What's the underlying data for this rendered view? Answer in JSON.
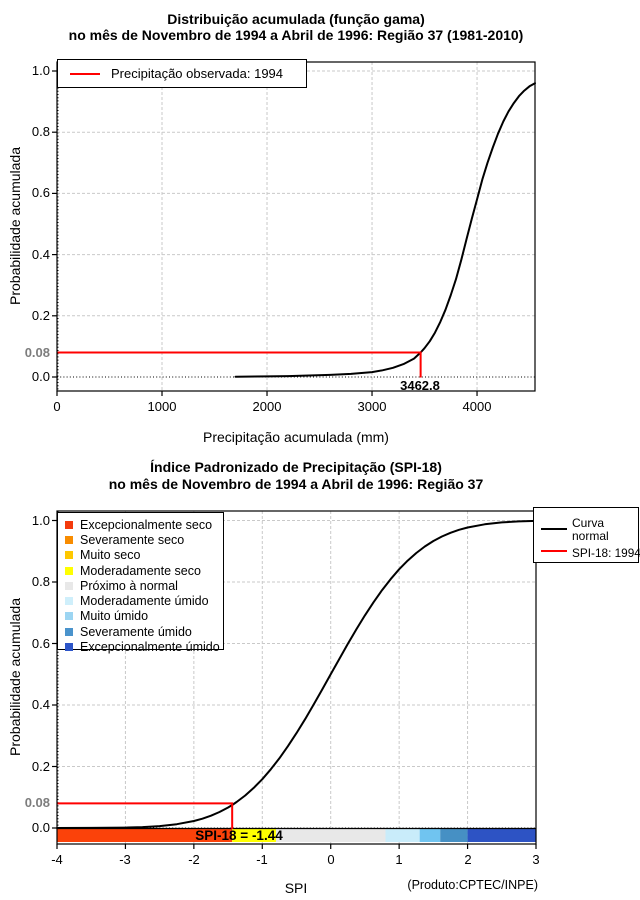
{
  "footer": "(Produto:CPTEC/INPE)",
  "colors": {
    "observed_line": "#ff0000",
    "curve": "#000000",
    "grid": "#c9c9c9",
    "special_tick": "#7d7d7d"
  },
  "charts": [
    {
      "id": "c1",
      "title1": "Distribuição acumulada (função gama)",
      "title2": "no mês de Novembro de 1994 a Abril de 1996: Região 37 (1981-2010)",
      "xlabel": "Precipitação acumulada (mm)",
      "ylabel": "Probabilidade acumulada",
      "legend": {
        "label": "Precipitação observada: 1994",
        "color": "#ff0000",
        "position": "top-left"
      },
      "observed_label": "3462.8",
      "chart_data": {
        "type": "line",
        "xlim": [
          0,
          4552
        ],
        "ylim": [
          0,
          1
        ],
        "grid": true,
        "xticks": [
          {
            "v": 0,
            "label": "0"
          },
          {
            "v": 1000,
            "label": "1000"
          },
          {
            "v": 2000,
            "label": "2000"
          },
          {
            "v": 3000,
            "label": "3000"
          },
          {
            "v": 4000,
            "label": "4000"
          }
        ],
        "yticks": [
          {
            "v": 0.0,
            "label": "0.0"
          },
          {
            "v": 0.2,
            "label": "0.2"
          },
          {
            "v": 0.4,
            "label": "0.4"
          },
          {
            "v": 0.6,
            "label": "0.6"
          },
          {
            "v": 0.8,
            "label": "0.8"
          },
          {
            "v": 1.0,
            "label": "1.0"
          }
        ],
        "special_ytick": {
          "v": 0.08,
          "label": "0.08"
        },
        "observed": {
          "x": 3462.8,
          "y": 0.08
        },
        "series": [
          {
            "name": "Distribuição gama acumulada",
            "color": "#000000",
            "x": [
              1700,
              2000,
              2200,
              2400,
              2600,
              2800,
              2900,
              3000,
              3100,
              3200,
              3300,
              3400,
              3462.8,
              3500,
              3550,
              3600,
              3650,
              3700,
              3750,
              3800,
              3850,
              3900,
              3950,
              4000,
              4050,
              4100,
              4150,
              4200,
              4250,
              4300,
              4350,
              4400,
              4450,
              4500,
              4552
            ],
            "y": [
              0.001,
              0.002,
              0.003,
              0.005,
              0.007,
              0.01,
              0.013,
              0.016,
              0.022,
              0.03,
              0.042,
              0.06,
              0.08,
              0.094,
              0.117,
              0.145,
              0.18,
              0.22,
              0.268,
              0.32,
              0.383,
              0.45,
              0.517,
              0.58,
              0.645,
              0.7,
              0.75,
              0.795,
              0.835,
              0.868,
              0.895,
              0.918,
              0.936,
              0.95,
              0.96
            ]
          }
        ]
      }
    },
    {
      "id": "c2",
      "title1": "Índice Padronizado de Precipitação (SPI-18)",
      "title2": "no mês de Novembro de 1994 a Abril de 1996: Região 37",
      "xlabel": "SPI",
      "ylabel": "Probabilidade acumulada",
      "annotation": "SPI-18 = -1.44",
      "categories": [
        {
          "label": "Excepcionalmente seco",
          "color": "#f43a0c"
        },
        {
          "label": "Severamente seco",
          "color": "#f88c00"
        },
        {
          "label": "Muito seco",
          "color": "#fec800"
        },
        {
          "label": "Moderadamente seco",
          "color": "#ffff00"
        },
        {
          "label": "Próximo à normal",
          "color": "#e8e8e8"
        },
        {
          "label": "Moderadamente úmido",
          "color": "#cfeffb"
        },
        {
          "label": "Muito úmido",
          "color": "#9cd5f2"
        },
        {
          "label": "Severamente úmido",
          "color": "#4a93cc"
        },
        {
          "label": "Excepcionalmente úmido",
          "color": "#2d55c8"
        }
      ],
      "legend_right": [
        {
          "label": "Curva normal",
          "color": "#000000"
        },
        {
          "label": "SPI-18: 1994",
          "color": "#ff0000"
        }
      ],
      "chart_data": {
        "type": "line",
        "xlim": [
          -4,
          3
        ],
        "ylim": [
          0,
          1
        ],
        "grid": true,
        "xticks": [
          {
            "v": -4,
            "label": "-4"
          },
          {
            "v": -3,
            "label": "-3"
          },
          {
            "v": -2,
            "label": "-2"
          },
          {
            "v": -1,
            "label": "-1"
          },
          {
            "v": 0,
            "label": "0"
          },
          {
            "v": 1,
            "label": "1"
          },
          {
            "v": 2,
            "label": "2"
          },
          {
            "v": 3,
            "label": "3"
          }
        ],
        "yticks": [
          {
            "v": 0.0,
            "label": "0.0"
          },
          {
            "v": 0.2,
            "label": "0.2"
          },
          {
            "v": 0.4,
            "label": "0.4"
          },
          {
            "v": 0.6,
            "label": "0.6"
          },
          {
            "v": 0.8,
            "label": "0.8"
          },
          {
            "v": 1.0,
            "label": "1.0"
          }
        ],
        "special_ytick": {
          "v": 0.08,
          "label": "0.08"
        },
        "observed": {
          "x": -1.44,
          "y": 0.08
        },
        "colorbar": [
          {
            "from": -4,
            "to": -1.44,
            "color": "#fb420a"
          },
          {
            "from": -1.44,
            "to": -0.8,
            "color": "#ffff00"
          },
          {
            "from": -0.8,
            "to": 0.8,
            "color": "#e8e8e8"
          },
          {
            "from": 0.8,
            "to": 1.3,
            "color": "#c9ecfa"
          },
          {
            "from": 1.3,
            "to": 1.6,
            "color": "#70c4f0"
          },
          {
            "from": 1.6,
            "to": 2.0,
            "color": "#4690c4"
          },
          {
            "from": 2.0,
            "to": 3.0,
            "color": "#2d53c4"
          }
        ],
        "series": [
          {
            "name": "Curva normal",
            "color": "#000000",
            "x": [
              -4,
              -3.5,
              -3,
              -2.75,
              -2.5,
              -2.25,
              -2,
              -1.875,
              -1.75,
              -1.625,
              -1.5,
              -1.44,
              -1.375,
              -1.25,
              -1.125,
              -1,
              -0.875,
              -0.75,
              -0.625,
              -0.5,
              -0.375,
              -0.25,
              -0.125,
              0,
              0.125,
              0.25,
              0.375,
              0.5,
              0.625,
              0.75,
              0.875,
              1,
              1.125,
              1.25,
              1.375,
              1.5,
              1.625,
              1.75,
              1.875,
              2,
              2.25,
              2.5,
              2.75,
              3
            ],
            "y": [
              0.0,
              0.0002,
              0.0013,
              0.003,
              0.0062,
              0.0122,
              0.0228,
              0.0304,
              0.0401,
              0.0521,
              0.0668,
              0.0749,
              0.0846,
              0.1056,
              0.1303,
              0.1587,
              0.1908,
              0.2266,
              0.266,
              0.3085,
              0.3538,
              0.4013,
              0.4503,
              0.5,
              0.5497,
              0.5987,
              0.6462,
              0.6915,
              0.734,
              0.7734,
              0.8092,
              0.8413,
              0.8697,
              0.8944,
              0.9154,
              0.9332,
              0.9479,
              0.9599,
              0.9696,
              0.9772,
              0.9878,
              0.9938,
              0.997,
              0.9987
            ]
          }
        ]
      }
    }
  ]
}
